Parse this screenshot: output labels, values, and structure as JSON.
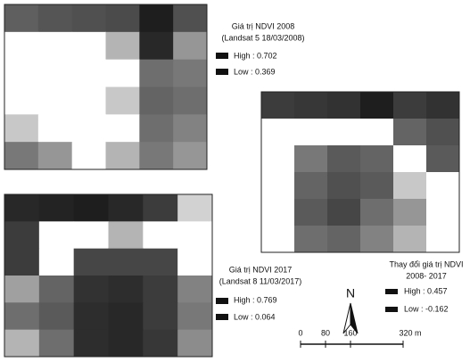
{
  "maps": [
    {
      "title_lines": [
        "Giá trị NDVI 2008",
        "(Landsat 5 18/03/2008)"
      ],
      "high": "High : 0.702",
      "low": "Low : 0.369"
    },
    {
      "title_lines": [
        "Giá trị NDVI 2017",
        "(Landsat 8 11/03/2017)"
      ],
      "high": "High : 0.769",
      "low": "Low : 0.064"
    },
    {
      "title_lines": [
        "Thay đổi giá trị NDVI",
        "2008- 2017"
      ],
      "high": "High : 0.457",
      "low": "Low : -0.162"
    }
  ],
  "north": "N",
  "scale_bar": {
    "labels": [
      "0",
      "80",
      "160",
      "320 m"
    ]
  }
}
